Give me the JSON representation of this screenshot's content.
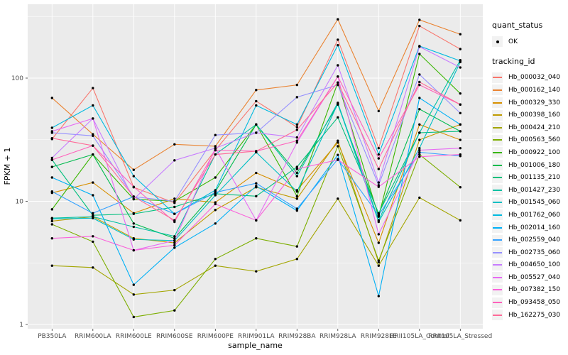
{
  "figure": {
    "xlabel": "sample_name",
    "ylabel": "FPKM + 1"
  },
  "legend": {
    "quant_status_title": "quant_status",
    "quant_status_items": [
      {
        "label": "OK",
        "marker": "black-point"
      }
    ],
    "tracking_title": "tracking_id"
  },
  "colors": {
    "page_bg": "#FFFFFF",
    "panel_bg": "#EBEBEB",
    "grid": "#FFFFFF",
    "tick": "#333333",
    "tick_label": "#4D4D4D",
    "axis_title": "#000000",
    "point": "#000000",
    "legend_key_bg": "#F2F2F2"
  },
  "chart_data": {
    "type": "line",
    "title": "",
    "xlabel": "sample_name",
    "ylabel": "FPKM + 1",
    "y_scale": "log10",
    "ylim": [
      0.93,
      400
    ],
    "y_major_ticks": [
      1,
      10,
      100
    ],
    "y_major_tick_labels": [
      "1",
      "10",
      "100"
    ],
    "y_minor_gridlines": [
      3.1623,
      31.623,
      316.23
    ],
    "grid": true,
    "legend_position": "right",
    "marker": "black-point",
    "categories": [
      "PB350LA",
      "RRIM600LA",
      "RRIM600LE",
      "RRIM600SE",
      "RRIM600PE",
      "RRIM901LA",
      "RRIM928BA",
      "RRIM928LA",
      "RRIM928LE",
      "RRII105LA_Control",
      "RRII105LA_Stressed"
    ],
    "series": [
      {
        "name": "Hb_000032_040",
        "color": "#F8766D",
        "quant_status": "OK",
        "values": [
          32,
          83,
          13,
          9.7,
          26,
          65,
          40,
          205,
          27,
          265,
          172
        ]
      },
      {
        "name": "Hb_000162_140",
        "color": "#EA8331",
        "quant_status": "OK",
        "values": [
          69,
          35,
          18,
          29,
          28,
          80,
          88,
          300,
          54,
          297,
          227
        ]
      },
      {
        "name": "Hb_000329_330",
        "color": "#D89000",
        "quant_status": "OK",
        "values": [
          11.7,
          14.2,
          8.0,
          10.5,
          9.8,
          17,
          12.3,
          30,
          4.6,
          42,
          31.5
        ]
      },
      {
        "name": "Hb_000398_160",
        "color": "#C09B00",
        "quant_status": "OK",
        "values": [
          6.9,
          7.5,
          5.0,
          4.6,
          8.5,
          13,
          10.5,
          31,
          3.2,
          31.5,
          42
        ]
      },
      {
        "name": "Hb_000424_210",
        "color": "#A3A500",
        "quant_status": "OK",
        "values": [
          3.0,
          2.9,
          1.75,
          1.9,
          3.0,
          2.7,
          3.4,
          10.5,
          3.0,
          10.7,
          7.0
        ]
      },
      {
        "name": "Hb_000563_560",
        "color": "#7CAE00",
        "quant_status": "OK",
        "values": [
          6.5,
          4.7,
          1.15,
          1.3,
          3.4,
          5.0,
          4.3,
          28,
          3.3,
          24,
          13
        ]
      },
      {
        "name": "Hb_000922_100",
        "color": "#39B600",
        "quant_status": "OK",
        "values": [
          8.6,
          24,
          10.4,
          10,
          15.6,
          42,
          11,
          92,
          7.5,
          157,
          75
        ]
      },
      {
        "name": "Hb_001006_180",
        "color": "#00BB4E",
        "quant_status": "OK",
        "values": [
          19,
          24,
          6.6,
          5.0,
          12,
          42,
          17,
          61,
          7.8,
          56,
          37
        ]
      },
      {
        "name": "Hb_001135_210",
        "color": "#00BF7D",
        "quant_status": "OK",
        "values": [
          21.7,
          7.7,
          7.9,
          9.0,
          11.5,
          11,
          19,
          48,
          8.0,
          36,
          37
        ]
      },
      {
        "name": "Hb_001427_230",
        "color": "#00C1A3",
        "quant_status": "OK",
        "values": [
          7.3,
          7.5,
          6.2,
          5.2,
          24,
          42,
          16,
          63,
          7.0,
          36,
          140
        ]
      },
      {
        "name": "Hb_001545_060",
        "color": "#00BFC4",
        "quant_status": "OK",
        "values": [
          7.2,
          7.3,
          4.9,
          4.8,
          11.2,
          25,
          12,
          62,
          6.8,
          27,
          135
        ]
      },
      {
        "name": "Hb_001762_060",
        "color": "#00BAE0",
        "quant_status": "OK",
        "values": [
          39.5,
          60,
          16,
          7.9,
          12.3,
          60,
          42,
          185,
          24,
          182,
          138
        ]
      },
      {
        "name": "Hb_002014_160",
        "color": "#00B0F6",
        "quant_status": "OK",
        "values": [
          15.6,
          11.2,
          2.1,
          4.2,
          6.6,
          13.3,
          8.4,
          23.8,
          1.7,
          69,
          42
        ]
      },
      {
        "name": "Hb_002559_040",
        "color": "#35A2FF",
        "quant_status": "OK",
        "values": [
          12,
          8.0,
          10.9,
          7.9,
          11.8,
          14,
          8.7,
          22,
          7.7,
          25,
          23.3
        ]
      },
      {
        "name": "Hb_002735_060",
        "color": "#9590FF",
        "quant_status": "OK",
        "values": [
          36,
          34,
          10.9,
          10,
          34.5,
          36,
          70,
          88,
          13.5,
          107,
          52
        ]
      },
      {
        "name": "Hb_004650_100",
        "color": "#C77CFF",
        "quant_status": "OK",
        "values": [
          22.5,
          47,
          10.4,
          21.5,
          27,
          36,
          33,
          127,
          14.2,
          180,
          122
        ]
      },
      {
        "name": "Hb_005527_040",
        "color": "#E76BF3",
        "quant_status": "OK",
        "values": [
          37,
          47,
          4.0,
          4.8,
          27,
          7.0,
          30,
          103,
          5.4,
          26,
          27
        ]
      },
      {
        "name": "Hb_007382_150",
        "color": "#FA62DB",
        "quant_status": "OK",
        "values": [
          5.0,
          5.2,
          4.0,
          4.4,
          9.5,
          7.0,
          18.3,
          21.7,
          13.1,
          23,
          24
        ]
      },
      {
        "name": "Hb_093458_050",
        "color": "#FF62BC",
        "quant_status": "OK",
        "values": [
          21.7,
          28.3,
          13.1,
          6.8,
          26,
          25.5,
          31,
          103,
          22.3,
          88,
          61
        ]
      },
      {
        "name": "Hb_162275_030",
        "color": "#FF6A98",
        "quant_status": "OK",
        "values": [
          32.5,
          28.3,
          10.9,
          7.0,
          24,
          25.5,
          38,
          92,
          18.3,
          93,
          61
        ]
      }
    ]
  }
}
